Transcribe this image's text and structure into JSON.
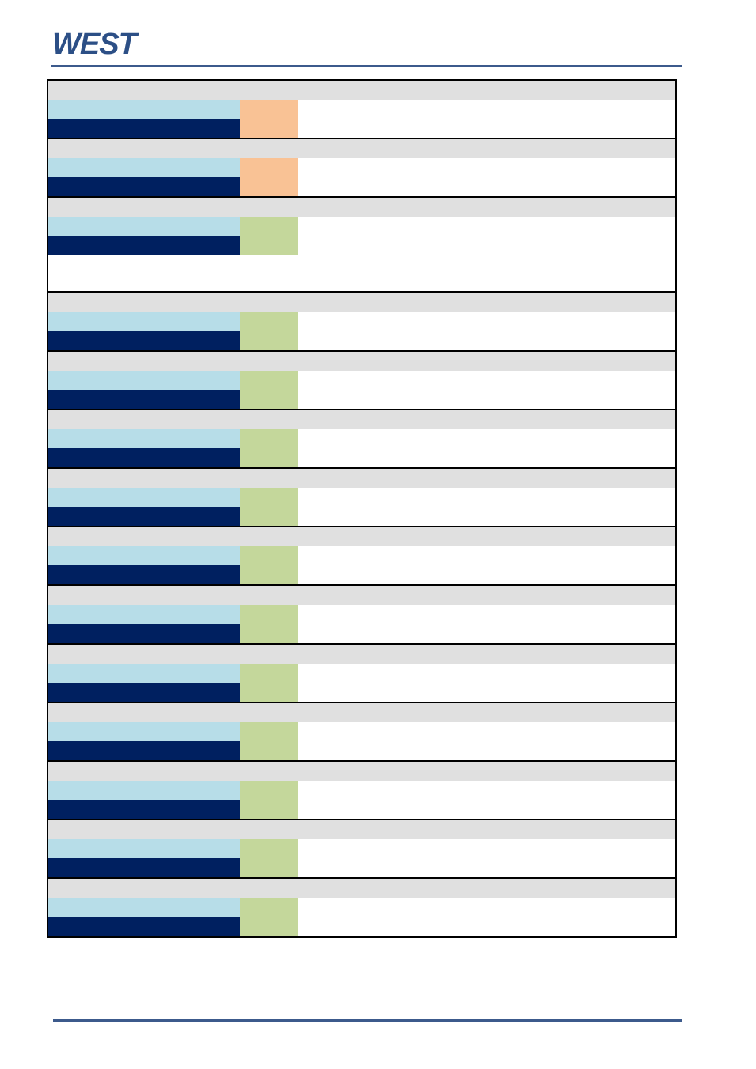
{
  "header": {
    "logo_text": "WEST",
    "rule_color": "#3c5a8c"
  },
  "colors": {
    "header_band": "#e0e0e0",
    "label_light": "#b7dde8",
    "label_dark": "#002060",
    "status_orange": "#f9c295",
    "status_green": "#c4d79b"
  },
  "rows": [
    {
      "section": "",
      "label_top": "",
      "label_bottom": "",
      "status": "orange",
      "status_text": "",
      "description": ""
    },
    {
      "section": "",
      "label_top": "",
      "label_bottom": "",
      "status": "orange",
      "status_text": "",
      "description": ""
    },
    {
      "section": "",
      "label_top": "",
      "label_bottom": "",
      "status": "green",
      "status_text": "",
      "description": "",
      "tall": true
    },
    {
      "section": "",
      "label_top": "",
      "label_bottom": "",
      "status": "green",
      "status_text": "",
      "description": ""
    },
    {
      "section": "",
      "label_top": "",
      "label_bottom": "",
      "status": "green",
      "status_text": "",
      "description": ""
    },
    {
      "section": "",
      "label_top": "",
      "label_bottom": "",
      "status": "green",
      "status_text": "",
      "description": ""
    },
    {
      "section": "",
      "label_top": "",
      "label_bottom": "",
      "status": "green",
      "status_text": "",
      "description": ""
    },
    {
      "section": "",
      "label_top": "",
      "label_bottom": "",
      "status": "green",
      "status_text": "",
      "description": ""
    },
    {
      "section": "",
      "label_top": "",
      "label_bottom": "",
      "status": "green",
      "status_text": "",
      "description": ""
    },
    {
      "section": "",
      "label_top": "",
      "label_bottom": "",
      "status": "green",
      "status_text": "",
      "description": ""
    },
    {
      "section": "",
      "label_top": "",
      "label_bottom": "",
      "status": "green",
      "status_text": "",
      "description": ""
    },
    {
      "section": "",
      "label_top": "",
      "label_bottom": "",
      "status": "green",
      "status_text": "",
      "description": ""
    },
    {
      "section": "",
      "label_top": "",
      "label_bottom": "",
      "status": "green",
      "status_text": "",
      "description": ""
    },
    {
      "section": "",
      "label_top": "",
      "label_bottom": "",
      "status": "green",
      "status_text": "",
      "description": ""
    }
  ]
}
